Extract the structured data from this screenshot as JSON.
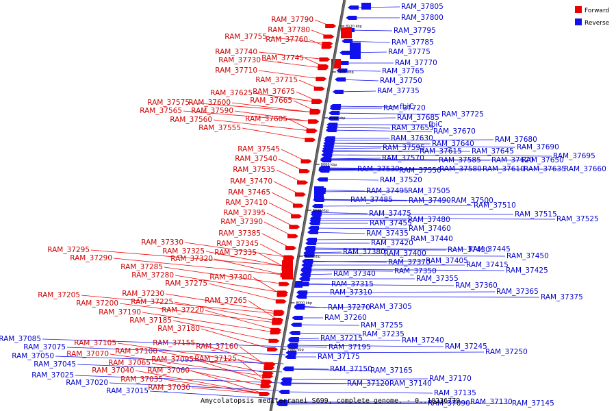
{
  "caption": "Amycolatopsis mediterranei S699, complete genome. - 0..10236779",
  "legend": {
    "forward": "Forward",
    "reverse": "Reverse",
    "forward_color": "#ee0000",
    "reverse_color": "#1111ee"
  },
  "ticks": [
    "8120 kbp",
    "8100 kbp",
    "8080 kbp",
    "8060 kbp",
    "8040 kbp",
    "8020 kbp",
    "8000 kbp",
    "7980 kbp"
  ],
  "forward_labels": [
    "RAM_37790",
    "RAM_37780",
    "RAM_37755",
    "RAM_37760",
    "RAM_37740",
    "RAM_37730",
    "RAM_37745",
    "RAM_37710",
    "RAM_37715",
    "RAM_37625",
    "RAM_37675",
    "RAM_37575",
    "RAM_37600",
    "RAM_37665",
    "RAM_37565",
    "RAM_37590",
    "RAM_37560",
    "RAM_37605",
    "RAM_37555",
    "RAM_37545",
    "RAM_37540",
    "RAM_37535",
    "RAM_37470",
    "RAM_37465",
    "RAM_37410",
    "RAM_37395",
    "RAM_37390",
    "RAM_37385",
    "RAM_37330",
    "RAM_37345",
    "RAM_37325",
    "RAM_37335",
    "RAM_37295",
    "RAM_37320",
    "RAM_37290",
    "RAM_37285",
    "RAM_37280",
    "RAM_37300",
    "RAM_37275",
    "RAM_37230",
    "RAM_37205",
    "RAM_37225",
    "RAM_37265",
    "RAM_37200",
    "RAM_37220",
    "RAM_37190",
    "RAM_37185",
    "RAM_37180",
    "RAM_37155",
    "RAM_37160",
    "RAM_37105",
    "RAM_37100",
    "RAM_37070",
    "RAM_37095",
    "RAM_37125",
    "RAM_37065",
    "RAM_37040",
    "RAM_37060",
    "RAM_37035",
    "RAM_37030"
  ],
  "reverse_labels_left": [
    "RAM_37085",
    "RAM_37075",
    "RAM_37050",
    "RAM_37045",
    "RAM_37025",
    "RAM_37020",
    "RAM_37015"
  ],
  "reverse_labels": [
    "RAM_37805",
    "RAM_37800",
    "RAM_37795",
    "RAM_37785",
    "RAM_37775",
    "RAM_37770",
    "RAM_37765",
    "RAM_37750",
    "RAM_37735",
    "RAM_37720",
    "fbiC",
    "RAM_37725",
    "RAM_37685",
    "fbiC",
    "RAM_37655",
    "RAM_37670",
    "RAM_37680",
    "RAM_37630",
    "RAM_37640",
    "RAM_37690",
    "RAM_37595",
    "RAM_37615",
    "RAM_37645",
    "RAM_37695",
    "RAM_37570",
    "RAM_37585",
    "RAM_37620",
    "RAM_37650",
    "RAM_37530",
    "RAM_37550",
    "RAM_37580",
    "RAM_37610",
    "RAM_37635",
    "RAM_37660",
    "RAM_37520",
    "RAM_37495",
    "RAM_37505",
    "RAM_37485",
    "RAM_37490",
    "RAM_37500",
    "RAM_37510",
    "RAM_37515",
    "RAM_37525",
    "RAM_37475",
    "RAM_37480",
    "RAM_37455",
    "RAM_37460",
    "RAM_37435",
    "RAM_37440",
    "RAM_37420",
    "RAM_37430",
    "RAM_37445",
    "RAM_37380",
    "RAM_37400",
    "RAM_37450",
    "RAM_37370",
    "RAM_37405",
    "RAM_37415",
    "RAM_37350",
    "RAM_37425",
    "RAM_37340",
    "RAM_37355",
    "RAM_37315",
    "RAM_37360",
    "RAM_37365",
    "RAM_37310",
    "RAM_37375",
    "RAM_37270",
    "RAM_37305",
    "RAM_37260",
    "RAM_37255",
    "RAM_37235",
    "RAM_37215",
    "RAM_37240",
    "RAM_37195",
    "RAM_37245",
    "RAM_37250",
    "RAM_37175",
    "RAM_37150",
    "RAM_37165",
    "RAM_37170",
    "RAM_37120",
    "RAM_37140",
    "RAM_37135",
    "RAM_37090",
    "RAM_37130",
    "RAM_37145"
  ]
}
